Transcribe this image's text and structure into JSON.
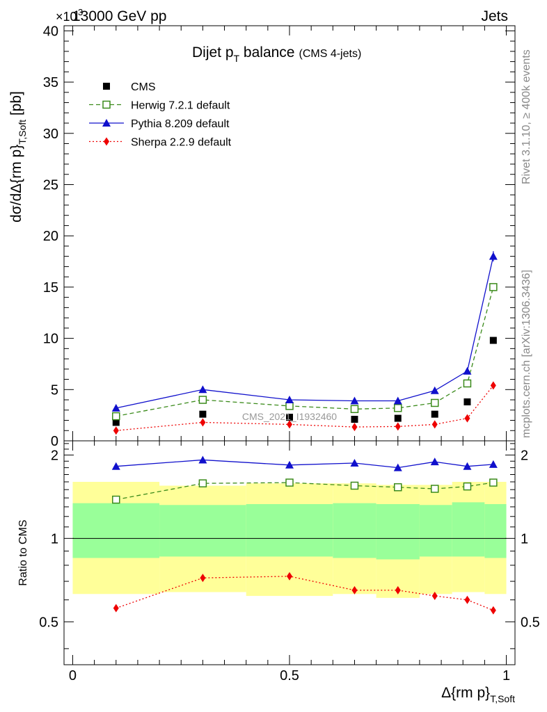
{
  "header": {
    "left": "13000 GeV pp",
    "right": "Jets",
    "exponent": "×10",
    "exponent_power": "3"
  },
  "side_labels": {
    "rivet": "Rivet 3.1.10, ≥ 400k events",
    "mcplots": "mcplots.cern.ch [arXiv:1306.3436]"
  },
  "watermark": "CMS_2021_I1932460",
  "chart_data": [
    {
      "type": "line",
      "panel": "main",
      "title": "Dijet p",
      "title_sub": "T",
      "title_rest": " balance",
      "title_note": "(CMS 4-jets)",
      "ylabel": "dσ/dΔ{rm p}",
      "ylabel_sub": "T,Soft",
      "ylabel_unit": " [pb]",
      "ylim": [
        0,
        40.5
      ],
      "y_ticks": [
        0,
        5,
        10,
        15,
        20,
        25,
        30,
        35,
        40
      ],
      "y_tick_labels": [
        "0",
        "5",
        "10",
        "15",
        "20",
        "25",
        "30",
        "35",
        "40"
      ],
      "x": [
        0.1,
        0.3,
        0.5,
        0.65,
        0.75,
        0.835,
        0.91,
        0.97
      ],
      "series": [
        {
          "name": "CMS",
          "color": "#000000",
          "marker": "square",
          "line": "none",
          "values": [
            1.8,
            2.6,
            2.3,
            2.1,
            2.2,
            2.6,
            3.8,
            9.8
          ]
        },
        {
          "name": "Herwig 7.2.1 default",
          "color": "#3a8a1a",
          "marker": "open-square",
          "line": "dashed",
          "values": [
            2.4,
            4.0,
            3.4,
            3.1,
            3.2,
            3.7,
            5.6,
            15.0
          ]
        },
        {
          "name": "Pythia 8.209 default",
          "color": "#1010cc",
          "marker": "triangle",
          "line": "solid",
          "values": [
            3.2,
            5.0,
            4.0,
            3.9,
            3.9,
            4.9,
            6.8,
            18.0
          ],
          "errors": [
            0.1,
            0.15,
            0.1,
            0.1,
            0.1,
            0.15,
            0.2,
            0.5
          ]
        },
        {
          "name": "Sherpa 2.2.9 default",
          "color": "#ee0000",
          "marker": "diamond",
          "line": "dotted",
          "values": [
            1.0,
            1.8,
            1.6,
            1.35,
            1.4,
            1.6,
            2.2,
            5.4
          ]
        }
      ],
      "legend_position": "top-left"
    },
    {
      "type": "line",
      "panel": "ratio",
      "ylabel": "Ratio to CMS",
      "ylim": [
        0.35,
        2.25
      ],
      "y_ticks": [
        0.5,
        1,
        2
      ],
      "y_tick_labels": [
        "0.5",
        "1",
        "2"
      ],
      "x": [
        0.1,
        0.3,
        0.5,
        0.65,
        0.75,
        0.835,
        0.91,
        0.97
      ],
      "xlabel": "Δ{rm p}",
      "xlabel_sub": "T,Soft",
      "xlim": [
        -0.02,
        1.02
      ],
      "x_ticks": [
        0,
        0.5,
        1
      ],
      "x_tick_labels": [
        "0",
        "0.5",
        "1"
      ],
      "bands": {
        "edges": [
          0.0,
          0.2,
          0.4,
          0.6,
          0.7,
          0.8,
          0.875,
          0.95,
          1.0
        ],
        "outer_low": [
          0.63,
          0.64,
          0.62,
          0.63,
          0.61,
          0.63,
          0.64,
          0.63
        ],
        "outer_high": [
          1.6,
          1.55,
          1.58,
          1.58,
          1.56,
          1.56,
          1.6,
          1.6
        ],
        "inner_low": [
          0.85,
          0.86,
          0.86,
          0.85,
          0.84,
          0.86,
          0.86,
          0.85
        ],
        "inner_high": [
          1.34,
          1.32,
          1.33,
          1.34,
          1.33,
          1.32,
          1.35,
          1.33
        ],
        "outer_color": "#ffff99",
        "inner_color": "#99ff99"
      },
      "series": [
        {
          "name": "Herwig 7.2.1 default",
          "color": "#3a8a1a",
          "marker": "open-square",
          "line": "dashed",
          "values": [
            1.38,
            1.58,
            1.59,
            1.55,
            1.53,
            1.51,
            1.54,
            1.59
          ]
        },
        {
          "name": "Pythia 8.209 default",
          "color": "#1010cc",
          "marker": "triangle",
          "line": "solid",
          "values": [
            1.82,
            1.92,
            1.84,
            1.87,
            1.8,
            1.89,
            1.82,
            1.85
          ],
          "errors": [
            0.03,
            0.03,
            0.04,
            0.05,
            0.05,
            0.05,
            0.04,
            0.04
          ]
        },
        {
          "name": "Sherpa 2.2.9 default",
          "color": "#ee0000",
          "marker": "diamond",
          "line": "dotted",
          "values": [
            0.56,
            0.72,
            0.73,
            0.65,
            0.65,
            0.62,
            0.6,
            0.55
          ]
        }
      ]
    }
  ]
}
